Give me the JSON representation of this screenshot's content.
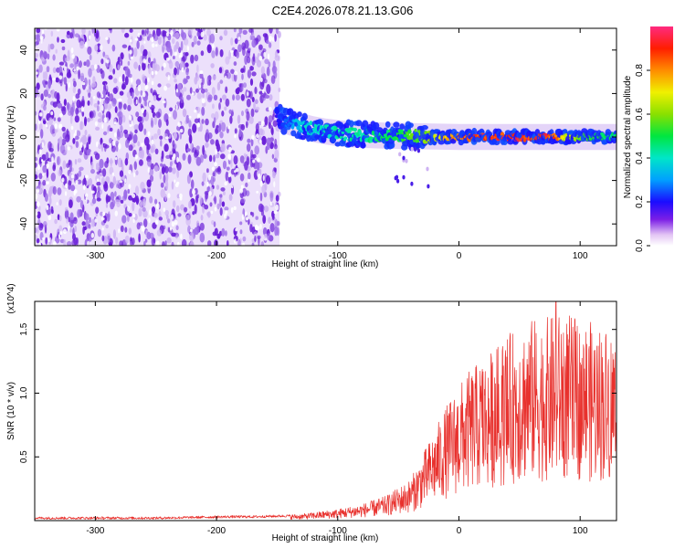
{
  "title": "C2E4.2026.078.21.13.G06",
  "chart_data": [
    {
      "type": "heatmap",
      "name": "spectrogram",
      "xlabel": "Height of straight line (km)",
      "ylabel": "Frequency (Hz)",
      "xlim": [
        -350,
        130
      ],
      "ylim": [
        -50,
        50
      ],
      "xticks": [
        -300,
        -200,
        -100,
        0,
        100
      ],
      "xtick_labels": [
        "-300",
        "-200",
        "-100",
        "0",
        "100"
      ],
      "yticks": [
        -40,
        -20,
        0,
        20,
        40
      ],
      "ytick_labels": [
        "-40",
        "-20",
        "0",
        "20",
        "40"
      ],
      "noise_region_x": [
        -350,
        -148
      ],
      "signal_track": [
        {
          "x": -150,
          "y": 8.8,
          "amp": 0.18
        },
        {
          "x": -140,
          "y": 6.8,
          "amp": 0.3
        },
        {
          "x": -130,
          "y": 5,
          "amp": 0.4
        },
        {
          "x": -120,
          "y": 3.6,
          "amp": 0.42
        },
        {
          "x": -110,
          "y": 2.5,
          "amp": 0.43
        },
        {
          "x": -100,
          "y": 1.8,
          "amp": 0.45
        },
        {
          "x": -90,
          "y": 1.2,
          "amp": 0.46
        },
        {
          "x": -80,
          "y": 1,
          "amp": 0.47
        },
        {
          "x": -70,
          "y": 0.8,
          "amp": 0.5
        },
        {
          "x": -60,
          "y": 0.6,
          "amp": 0.52
        },
        {
          "x": -50,
          "y": 0.5,
          "amp": 0.55
        },
        {
          "x": -40,
          "y": 0.4,
          "amp": 0.58
        },
        {
          "x": -30,
          "y": 0.3,
          "amp": 0.62
        },
        {
          "x": -20,
          "y": 0.2,
          "amp": 0.7
        },
        {
          "x": -10,
          "y": 0.1,
          "amp": 0.8
        },
        {
          "x": 0,
          "y": 0,
          "amp": 0.9
        },
        {
          "x": 10,
          "y": 0,
          "amp": 0.93
        },
        {
          "x": 20,
          "y": 0,
          "amp": 0.95
        },
        {
          "x": 30,
          "y": 0,
          "amp": 0.96
        },
        {
          "x": 40,
          "y": 0,
          "amp": 0.97
        },
        {
          "x": 50,
          "y": 0,
          "amp": 0.98
        },
        {
          "x": 60,
          "y": 0,
          "amp": 0.97
        },
        {
          "x": 70,
          "y": 0,
          "amp": 0.96
        },
        {
          "x": 80,
          "y": 0,
          "amp": 0.9
        },
        {
          "x": 90,
          "y": 0,
          "amp": 0.72
        },
        {
          "x": 100,
          "y": 0,
          "amp": 0.62
        },
        {
          "x": 110,
          "y": 0,
          "amp": 0.55
        },
        {
          "x": 120,
          "y": 0,
          "amp": 0.52
        },
        {
          "x": 130,
          "y": 0,
          "amp": 0.5
        }
      ],
      "colorbar": {
        "label": "Normalized spectral amplitude",
        "range": [
          0,
          1
        ],
        "ticks": [
          0,
          0.2,
          0.4,
          0.6,
          0.8
        ],
        "tick_labels": [
          "0.0",
          "0.2",
          "0.4",
          "0.6",
          "0.8"
        ]
      }
    },
    {
      "type": "line",
      "name": "snr",
      "xlabel": "Height of straight line (km)",
      "ylabel": "SNR (10 * v/v)",
      "scale_label": "(x10^4)",
      "xlim": [
        -350,
        130
      ],
      "ylim": [
        0,
        1.72
      ],
      "xticks": [
        -300,
        -200,
        -100,
        0,
        100
      ],
      "xtick_labels": [
        "-300",
        "-200",
        "-100",
        "0",
        "100"
      ],
      "yticks": [
        0.5,
        1.0,
        1.5
      ],
      "ytick_labels": [
        "0.5",
        "1.0",
        "1.5"
      ],
      "series_color": "#e8312d",
      "envelope": {
        "x": [
          -350,
          -250,
          -190,
          -170,
          -130,
          -100,
          -80,
          -60,
          -40,
          -30,
          -20,
          -10,
          0,
          10,
          20,
          30,
          40,
          50,
          60,
          70,
          80,
          90,
          100,
          110,
          120,
          130
        ],
        "y": [
          0.02,
          0.02,
          0.03,
          0.03,
          0.04,
          0.07,
          0.1,
          0.15,
          0.25,
          0.4,
          0.55,
          0.7,
          0.82,
          0.92,
          0.98,
          1.05,
          1.12,
          1.18,
          1.22,
          1.22,
          1.25,
          1.25,
          1.22,
          1.2,
          1.18,
          1.15
        ]
      },
      "peak": {
        "x": 80,
        "y": 1.72
      }
    }
  ]
}
